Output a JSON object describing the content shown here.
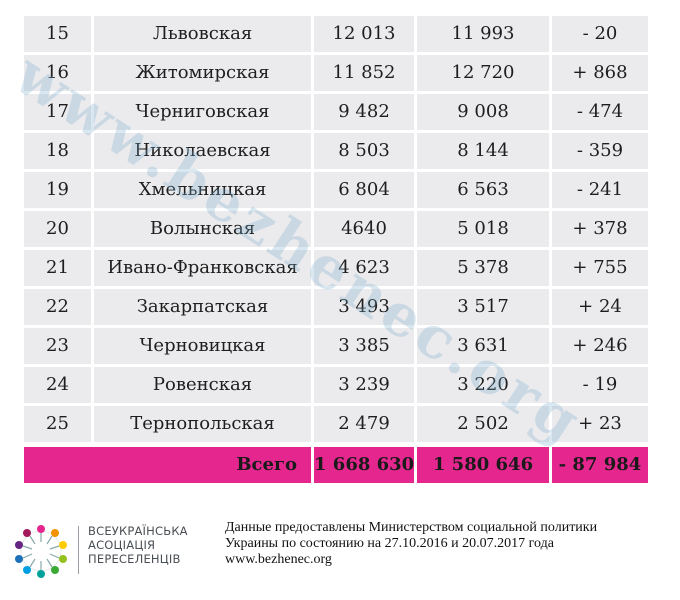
{
  "rows": [
    {
      "num": "15",
      "region": "Львовская",
      "v1": "12 013",
      "v2": "11 993",
      "diff": "- 20"
    },
    {
      "num": "16",
      "region": "Житомирская",
      "v1": "11 852",
      "v2": "12 720",
      "diff": "+ 868"
    },
    {
      "num": "17",
      "region": "Черниговская",
      "v1": "9 482",
      "v2": "9 008",
      "diff": "- 474"
    },
    {
      "num": "18",
      "region": "Николаевская",
      "v1": "8 503",
      "v2": "8 144",
      "diff": "- 359"
    },
    {
      "num": "19",
      "region": "Хмельницкая",
      "v1": "6 804",
      "v2": "6 563",
      "diff": "- 241"
    },
    {
      "num": "20",
      "region": "Волынская",
      "v1": "4640",
      "v2": "5 018",
      "diff": "+ 378"
    },
    {
      "num": "21",
      "region": "Ивано-Франковская",
      "v1": "4 623",
      "v2": "5 378",
      "diff": "+ 755"
    },
    {
      "num": "22",
      "region": "Закарпатская",
      "v1": "3 493",
      "v2": "3 517",
      "diff": "+ 24"
    },
    {
      "num": "23",
      "region": "Черновицкая",
      "v1": "3 385",
      "v2": "3 631",
      "diff": "+ 246"
    },
    {
      "num": "24",
      "region": "Ровенская",
      "v1": "3 239",
      "v2": "3 220",
      "diff": "- 19"
    },
    {
      "num": "25",
      "region": "Тернопольская",
      "v1": "2 479",
      "v2": "2 502",
      "diff": "+ 23"
    }
  ],
  "total": {
    "label": "Всего",
    "v1": "1 668 630",
    "v2": "1 580 646",
    "diff": "- 87 984"
  },
  "watermark": "www.bezhenec.org",
  "footer": {
    "org_lines": [
      "ВСЕУКРАЇНСЬКА",
      "АСОЦІАЦІЯ",
      "ПЕРЕСЕЛЕНЦІВ"
    ],
    "source_lines": [
      "Данные предоставлены Министерством социальной политики",
      "Украины по состоянию на 27.10.2016 и 20.07.2017 года",
      "www.bezhenec.org"
    ]
  },
  "colors": {
    "row_bg": "#ebebed",
    "total_bg": "#e6268f",
    "watermark": "#78aac8"
  }
}
